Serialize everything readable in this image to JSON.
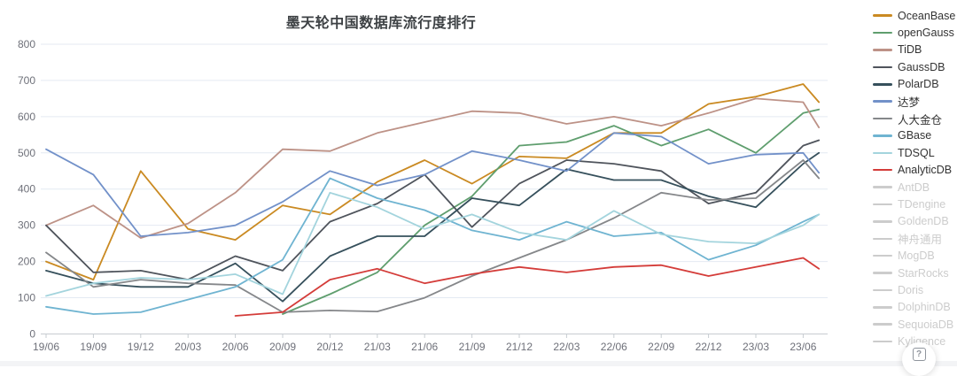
{
  "chart_data": {
    "type": "line",
    "title": "墨天轮中国数据库流行度排行",
    "xlabel": "",
    "ylabel": "",
    "ylim": [
      0,
      800
    ],
    "y_tick_interval": 100,
    "y_tick_labels": [
      "0",
      "100",
      "200",
      "300",
      "400",
      "500",
      "600",
      "700",
      "800"
    ],
    "grid": true,
    "legend_position": "right",
    "x_tick_labels": [
      "19/06",
      "19/09",
      "19/12",
      "20/03",
      "20/06",
      "20/09",
      "20/12",
      "21/03",
      "21/06",
      "21/09",
      "21/12",
      "22/03",
      "22/06",
      "22/09",
      "22/12",
      "23/03",
      "23/06"
    ],
    "x_months": [
      0,
      3,
      6,
      9,
      12,
      15,
      18,
      21,
      24,
      27,
      30,
      33,
      36,
      39,
      42,
      45,
      48,
      49
    ],
    "series": [
      {
        "name": "OceanBase",
        "color": "#ca8a22",
        "values": [
          200,
          150,
          450,
          290,
          260,
          355,
          330,
          420,
          480,
          415,
          490,
          485,
          555,
          555,
          635,
          655,
          690,
          640
        ]
      },
      {
        "name": "openGauss",
        "color": "#5f9e6e",
        "values": [
          null,
          null,
          null,
          null,
          null,
          55,
          110,
          170,
          300,
          380,
          520,
          530,
          575,
          520,
          565,
          500,
          610,
          620
        ]
      },
      {
        "name": "TiDB",
        "color": "#bd9287",
        "values": [
          300,
          355,
          265,
          305,
          390,
          510,
          505,
          555,
          585,
          615,
          610,
          580,
          600,
          575,
          610,
          650,
          640,
          570
        ]
      },
      {
        "name": "GaussDB",
        "color": "#4f545c",
        "values": [
          300,
          170,
          175,
          150,
          215,
          175,
          310,
          360,
          440,
          295,
          415,
          480,
          470,
          450,
          360,
          390,
          520,
          535
        ]
      },
      {
        "name": "PolarDB",
        "color": "#36505c",
        "values": [
          175,
          140,
          130,
          130,
          195,
          90,
          215,
          270,
          270,
          375,
          355,
          455,
          425,
          425,
          380,
          350,
          470,
          500
        ]
      },
      {
        "name": "达梦",
        "color": "#7291c9",
        "values": [
          510,
          440,
          270,
          280,
          300,
          365,
          450,
          410,
          440,
          505,
          480,
          450,
          555,
          545,
          470,
          495,
          500,
          445
        ]
      },
      {
        "name": "人大金仓",
        "color": "#85878a",
        "values": [
          225,
          130,
          150,
          140,
          135,
          60,
          65,
          62,
          100,
          160,
          210,
          260,
          320,
          390,
          370,
          375,
          480,
          430
        ]
      },
      {
        "name": "GBase",
        "color": "#6fb4d1",
        "values": [
          75,
          55,
          60,
          95,
          130,
          205,
          430,
          375,
          342,
          286,
          260,
          310,
          270,
          280,
          205,
          245,
          310,
          330
        ]
      },
      {
        "name": "TDSQL",
        "color": "#a3d4dd",
        "values": [
          105,
          140,
          155,
          150,
          165,
          110,
          390,
          350,
          290,
          330,
          280,
          260,
          340,
          275,
          255,
          250,
          300,
          330
        ]
      },
      {
        "name": "AnalyticDB",
        "color": "#d43c39",
        "values": [
          null,
          null,
          null,
          null,
          50,
          60,
          150,
          180,
          140,
          165,
          185,
          170,
          185,
          190,
          160,
          185,
          210,
          180
        ]
      }
    ],
    "disabled_series": [
      "AntDB",
      "TDengine",
      "GoldenDB",
      "神舟通用",
      "MogDB",
      "StarRocks",
      "Doris",
      "DolphinDB",
      "SequoiaDB",
      "Kyligence"
    ],
    "disabled_color": "#cccccc",
    "axis_text_color": "#6e7079",
    "gridline_color": "#e4eaf2",
    "axis_line_color": "#c7ccd1"
  },
  "help_button": {
    "label": "?"
  }
}
